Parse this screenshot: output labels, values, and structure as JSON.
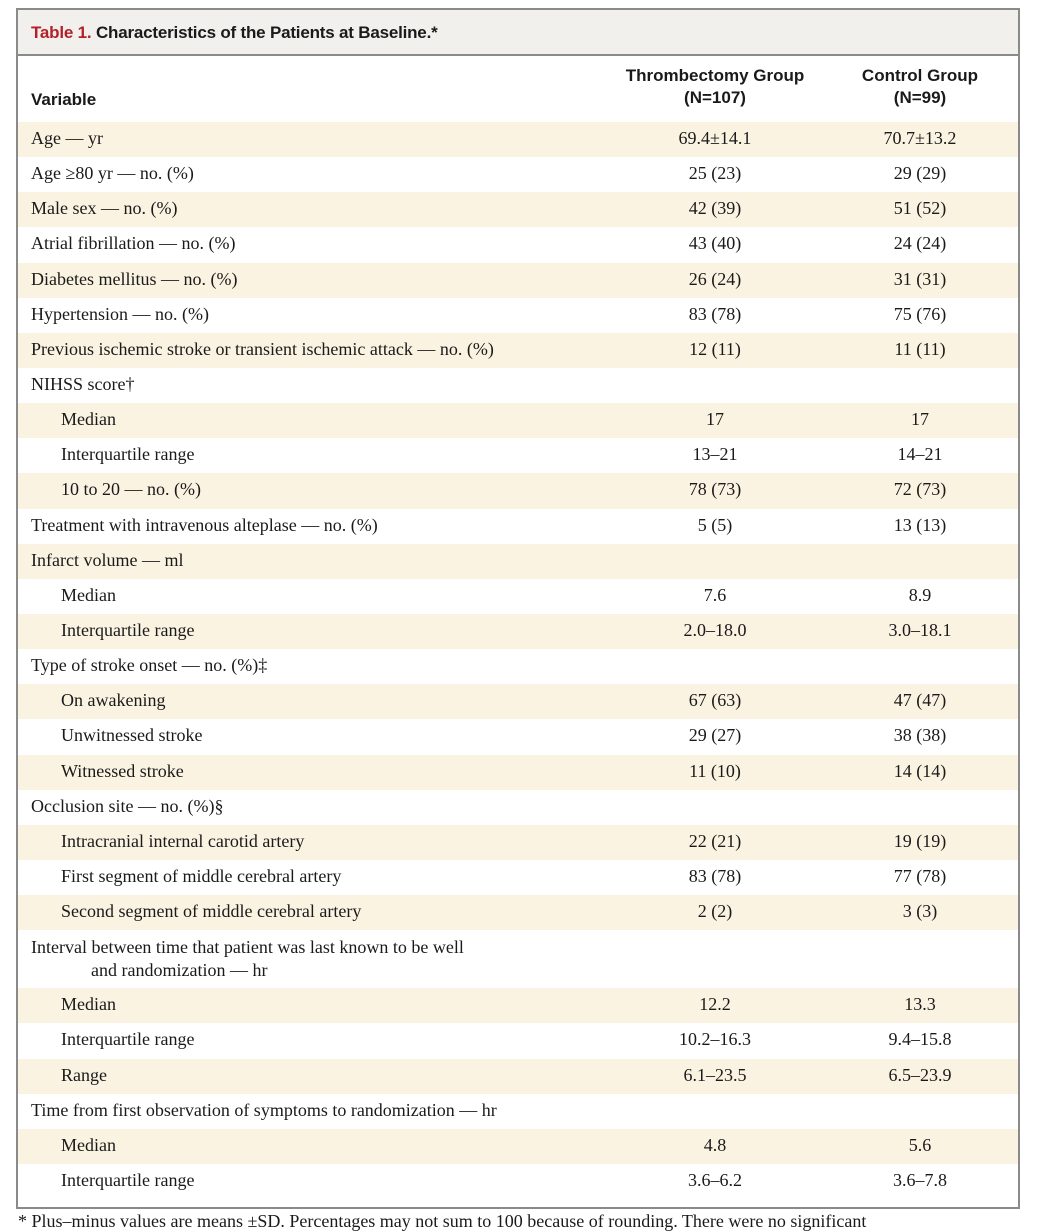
{
  "table": {
    "number": "Table 1.",
    "title": "Characteristics of the Patients at Baseline.*",
    "header": {
      "variable": "Variable",
      "col1_line1": "Thrombectomy Group",
      "col1_line2": "(N=107)",
      "col2_line1": "Control Group",
      "col2_line2": "(N=99)"
    },
    "rows": [
      {
        "label": "Age — yr",
        "v1": "69.4±14.1",
        "v2": "70.7±13.2"
      },
      {
        "label": "Age ≥80 yr — no. (%)",
        "v1": "25 (23)",
        "v2": "29 (29)"
      },
      {
        "label": "Male sex — no. (%)",
        "v1": "42 (39)",
        "v2": "51 (52)"
      },
      {
        "label": "Atrial fibrillation — no. (%)",
        "v1": "43 (40)",
        "v2": "24 (24)"
      },
      {
        "label": "Diabetes mellitus — no. (%)",
        "v1": "26 (24)",
        "v2": "31 (31)"
      },
      {
        "label": "Hypertension — no. (%)",
        "v1": "83 (78)",
        "v2": "75 (76)"
      },
      {
        "label": "Previous ischemic stroke or transient ischemic attack — no. (%)",
        "v1": "12 (11)",
        "v2": "11 (11)"
      },
      {
        "label": "NIHSS score†",
        "v1": "",
        "v2": ""
      },
      {
        "label": "Median",
        "v1": "17",
        "v2": "17",
        "indent": true
      },
      {
        "label": "Interquartile range",
        "v1": "13–21",
        "v2": "14–21",
        "indent": true
      },
      {
        "label": "10 to 20 — no. (%)",
        "v1": "78 (73)",
        "v2": "72 (73)",
        "indent": true
      },
      {
        "label": "Treatment with intravenous alteplase — no. (%)",
        "v1": "5 (5)",
        "v2": "13 (13)"
      },
      {
        "label": "Infarct volume — ml",
        "v1": "",
        "v2": ""
      },
      {
        "label": "Median",
        "v1": "7.6",
        "v2": "8.9",
        "indent": true
      },
      {
        "label": "Interquartile range",
        "v1": "2.0–18.0",
        "v2": "3.0–18.1",
        "indent": true
      },
      {
        "label": "Type of stroke onset — no. (%)‡",
        "v1": "",
        "v2": ""
      },
      {
        "label": "On awakening",
        "v1": "67 (63)",
        "v2": "47 (47)",
        "indent": true
      },
      {
        "label": "Unwitnessed stroke",
        "v1": "29 (27)",
        "v2": "38 (38)",
        "indent": true
      },
      {
        "label": "Witnessed stroke",
        "v1": "11 (10)",
        "v2": "14 (14)",
        "indent": true
      },
      {
        "label": "Occlusion site — no. (%)§",
        "v1": "",
        "v2": ""
      },
      {
        "label": "Intracranial internal carotid artery",
        "v1": "22 (21)",
        "v2": "19 (19)",
        "indent": true
      },
      {
        "label": "First segment of middle cerebral artery",
        "v1": "83 (78)",
        "v2": "77 (78)",
        "indent": true
      },
      {
        "label": "Second segment of middle cerebral artery",
        "v1": "2 (2)",
        "v2": "3 (3)",
        "indent": true
      },
      {
        "label": "Interval between time that patient was last known to be well",
        "label2": "and randomization — hr",
        "v1": "",
        "v2": "",
        "tall": true
      },
      {
        "label": "Median",
        "v1": "12.2",
        "v2": "13.3",
        "indent": true
      },
      {
        "label": "Interquartile range",
        "v1": "10.2–16.3",
        "v2": "9.4–15.8",
        "indent": true
      },
      {
        "label": "Range",
        "v1": "6.1–23.5",
        "v2": "6.5–23.9",
        "indent": true
      },
      {
        "label": "Time from first observation of symptoms to randomization — hr",
        "v1": "",
        "v2": ""
      },
      {
        "label": "Median",
        "v1": "4.8",
        "v2": "5.6",
        "indent": true
      },
      {
        "label": "Interquartile range",
        "v1": "3.6–6.2",
        "v2": "3.6–7.8",
        "indent": true
      }
    ],
    "footnote_partial": "* Plus–minus values are means ±SD. Percentages may not sum to 100 because of rounding. There were no significant"
  }
}
